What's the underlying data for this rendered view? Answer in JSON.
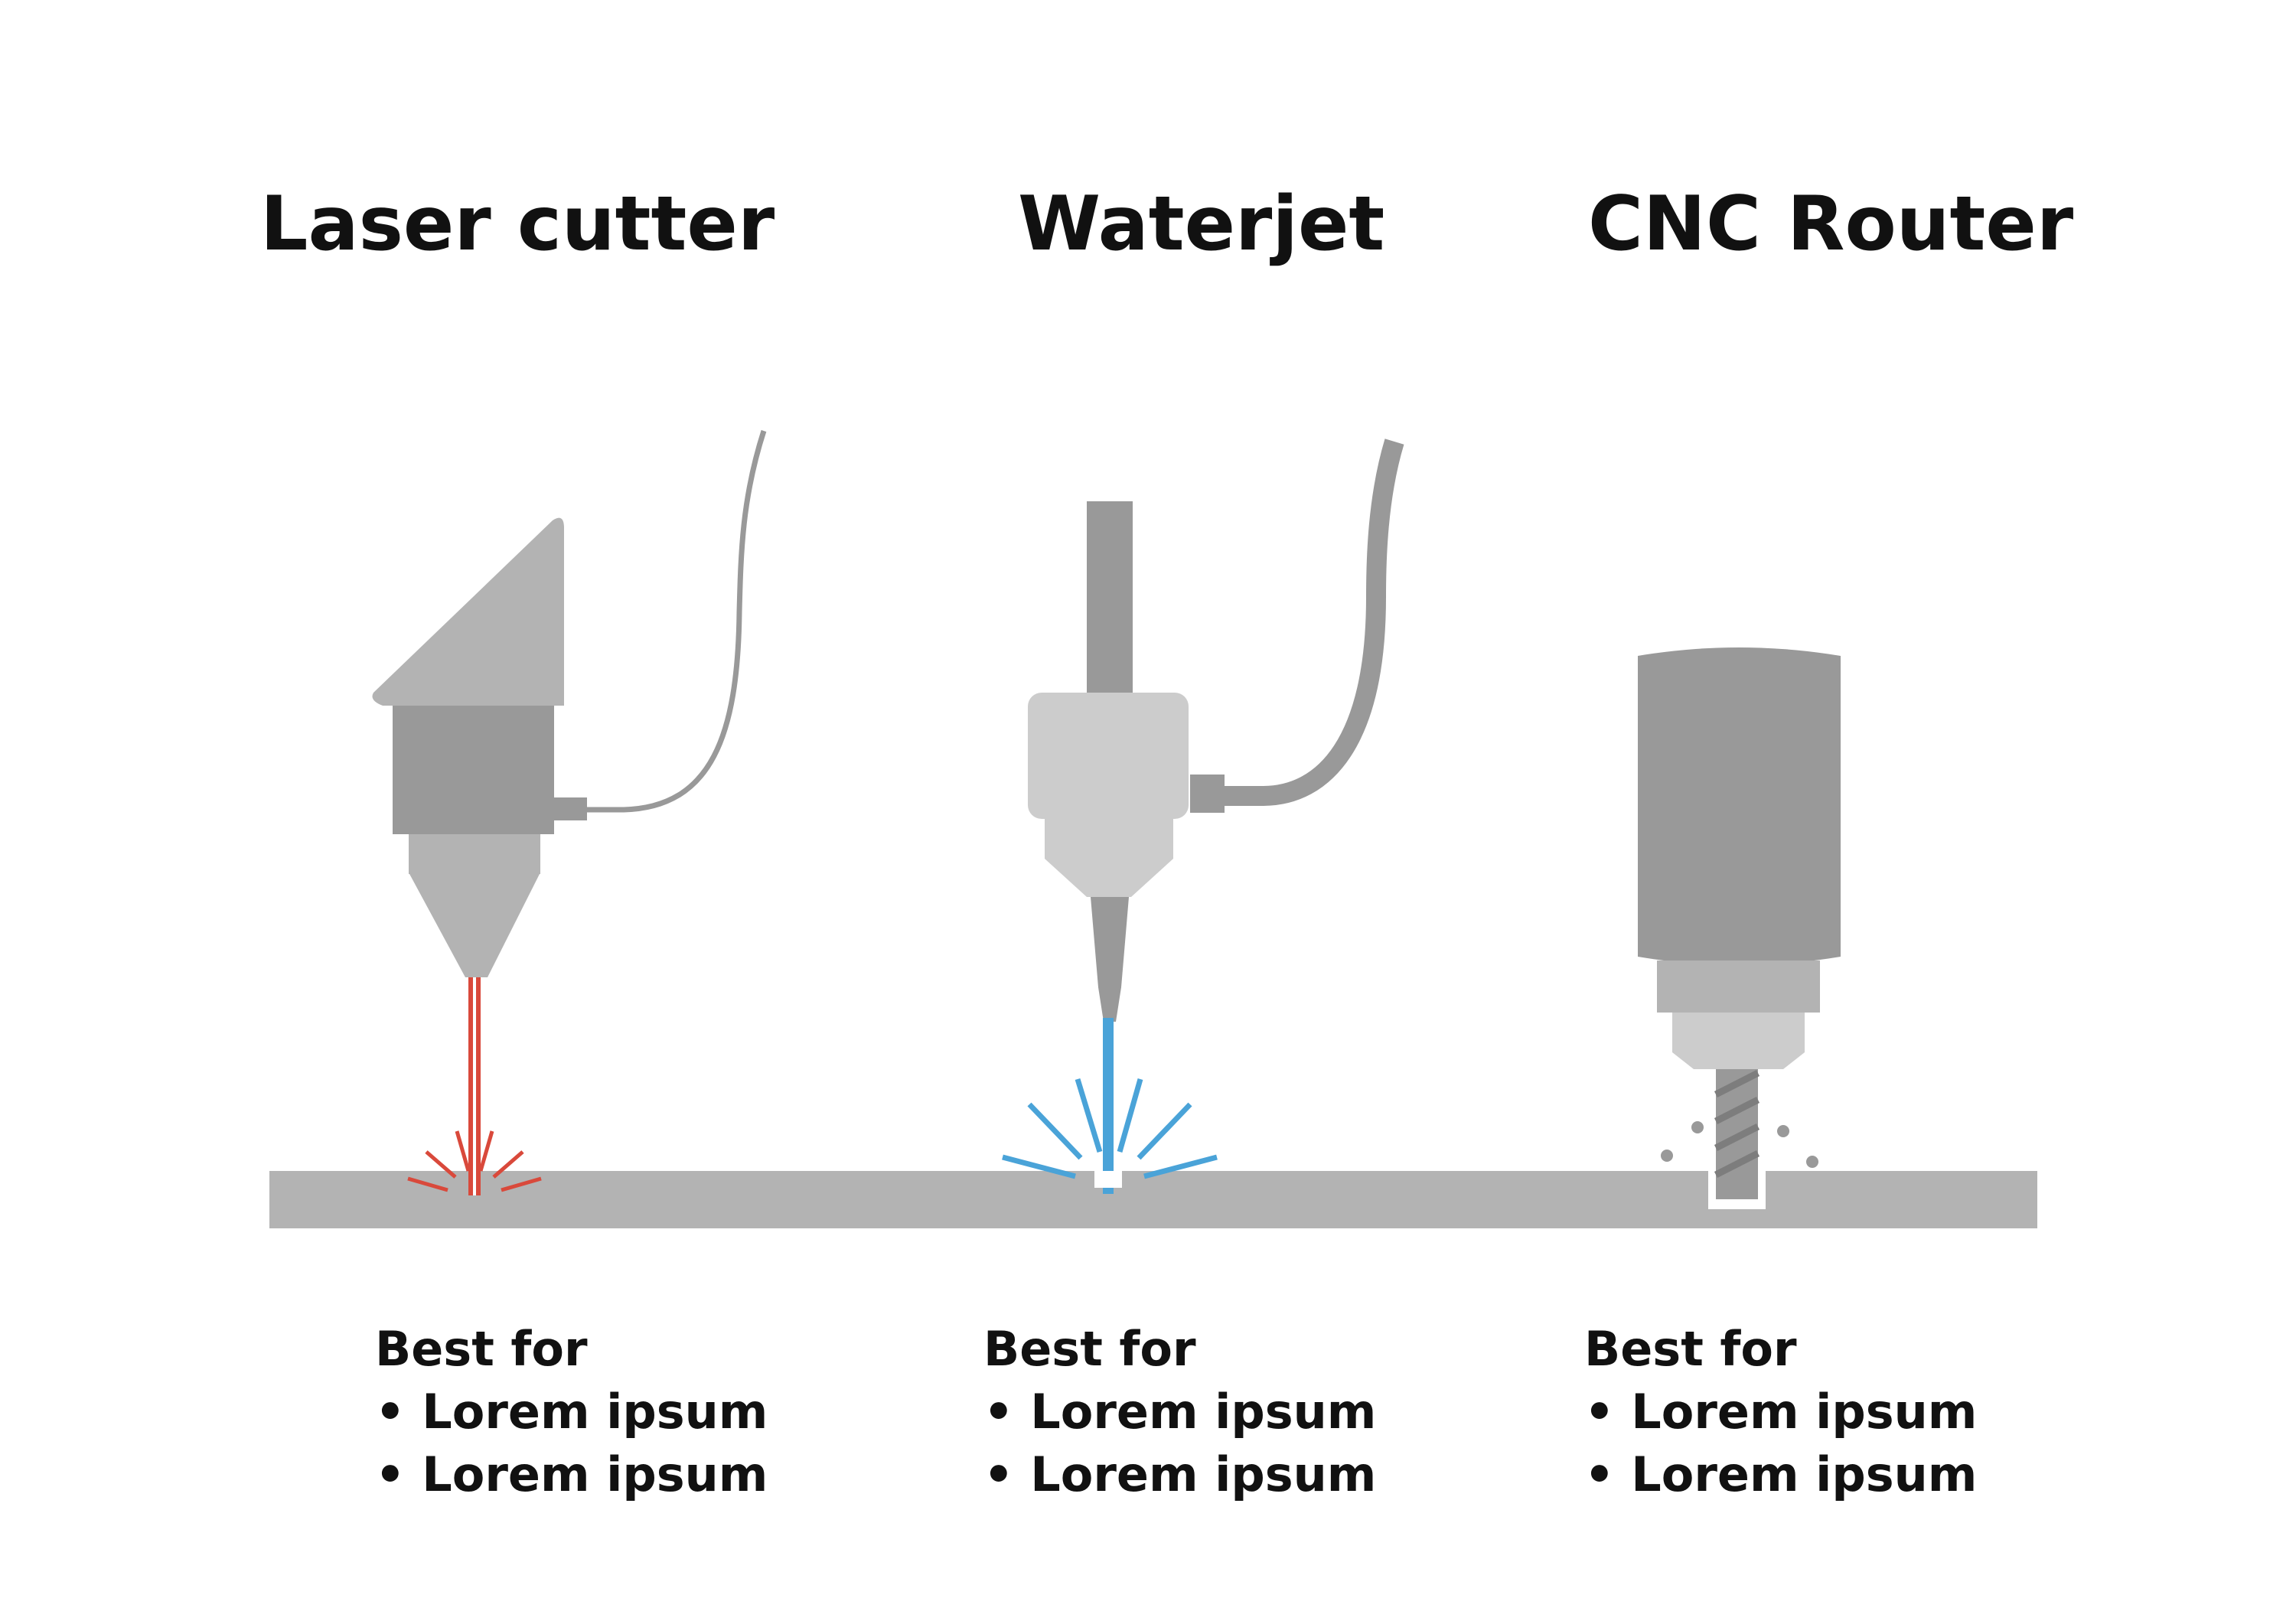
{
  "titles": {
    "laser": "Laser cutter",
    "waterjet": "Waterjet",
    "cnc": "CNC Router"
  },
  "captions": {
    "laser": {
      "heading": "Best for",
      "items": [
        "• Lorem ipsum",
        "• Lorem ipsum"
      ]
    },
    "waterjet": {
      "heading": "Best for",
      "items": [
        "• Lorem ipsum",
        "• Lorem ipsum"
      ]
    },
    "cnc": {
      "heading": "Best for",
      "items": [
        "• Lorem ipsum",
        "• Lorem ipsum"
      ]
    }
  },
  "colors": {
    "background": "#ffffff",
    "workpiece": "#b3b3b3",
    "machine_dark": "#999999",
    "machine_mid": "#b3b3b3",
    "machine_light": "#cccccc",
    "laser_beam": "#d9493b",
    "water_jet": "#4aa3d8",
    "text": "#111111"
  }
}
